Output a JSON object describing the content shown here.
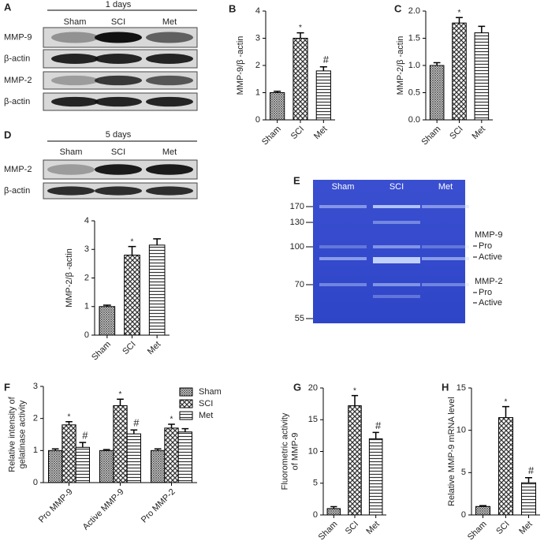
{
  "blots": [
    {
      "panel": "A",
      "title": "1 days",
      "lanes": [
        "Sham",
        "SCI",
        "Met"
      ],
      "rows": [
        "MMP-9",
        "β-actin",
        "MMP-2",
        "β-actin"
      ]
    },
    {
      "panel": "D",
      "title": "5 days",
      "lanes": [
        "Sham",
        "SCI",
        "Met"
      ],
      "rows": [
        "MMP-2",
        "β-actin"
      ]
    }
  ],
  "gel": {
    "panel": "E",
    "lanes": [
      "Sham",
      "SCI",
      "Met"
    ],
    "markers": [
      170,
      130,
      100,
      70,
      55
    ],
    "labels": [
      "MMP-9",
      "Pro",
      "Active",
      "MMP-2",
      "Pro",
      "Active"
    ]
  },
  "chart_data": [
    {
      "type": "bar",
      "panel": "B",
      "ylabel": [
        "MMP-9/β -actin"
      ],
      "categories": [
        "Sham",
        "SCI",
        "Met"
      ],
      "values": [
        1.0,
        3.0,
        1.8
      ],
      "errors": [
        0.05,
        0.2,
        0.15
      ],
      "annotations": [
        null,
        "*",
        "#"
      ],
      "ylim": [
        0,
        4
      ],
      "yticks": [
        0,
        1,
        2,
        3,
        4
      ]
    },
    {
      "type": "bar",
      "panel": "C",
      "ylabel": [
        "MMP-2/β -actin"
      ],
      "categories": [
        "Sham",
        "SCI",
        "Met"
      ],
      "values": [
        1.0,
        1.78,
        1.6
      ],
      "errors": [
        0.05,
        0.1,
        0.12
      ],
      "annotations": [
        null,
        "*",
        null
      ],
      "ylim": [
        0,
        2
      ],
      "yticks": [
        {
          "value": 0,
          "label": "0.0"
        },
        0.5,
        {
          "value": 1,
          "label": "1.0"
        },
        1.5,
        {
          "value": 2,
          "label": "2.0"
        }
      ]
    },
    {
      "type": "bar",
      "ylabel": [
        "MMP-2/β -actin"
      ],
      "categories": [
        "Sham",
        "SCI",
        "Met"
      ],
      "values": [
        1.0,
        2.8,
        3.15
      ],
      "errors": [
        0.05,
        0.3,
        0.22
      ],
      "annotations": [
        null,
        "*",
        null
      ],
      "ylim": [
        0,
        4
      ],
      "yticks": [
        0,
        1,
        2,
        3,
        4
      ]
    },
    {
      "type": "grouped_bar",
      "panel": "F",
      "ylabel": [
        "Relative intensity of",
        "gelatinase activity"
      ],
      "categories": [
        "Pro MMP-9",
        "Active MMP-9",
        "Pro MMP-2"
      ],
      "series": [
        {
          "name": "Sham",
          "values": [
            1.0,
            1.0,
            1.0
          ],
          "errors": [
            0.05,
            0.03,
            0.05
          ],
          "annotations": [
            null,
            null,
            null
          ]
        },
        {
          "name": "SCI",
          "values": [
            1.8,
            2.4,
            1.7
          ],
          "errors": [
            0.1,
            0.2,
            0.12
          ],
          "annotations": [
            "*",
            "*",
            "*"
          ]
        },
        {
          "name": "Met",
          "values": [
            1.1,
            1.52,
            1.58
          ],
          "errors": [
            0.15,
            0.12,
            0.1
          ],
          "annotations": [
            "#",
            "#",
            null
          ]
        }
      ],
      "ylim": [
        0,
        3
      ],
      "yticks": [
        0,
        1,
        2,
        3
      ]
    },
    {
      "type": "bar",
      "panel": "G",
      "ylabel": [
        "Fluorometric activity",
        "of MMP-9"
      ],
      "categories": [
        "Sham",
        "SCI",
        "Met"
      ],
      "values": [
        1.0,
        17.2,
        12.0
      ],
      "errors": [
        0.3,
        1.6,
        1.0
      ],
      "annotations": [
        null,
        "*",
        "#"
      ],
      "ylim": [
        0,
        20
      ],
      "yticks": [
        0,
        5,
        10,
        15,
        20
      ]
    },
    {
      "type": "bar",
      "panel": "H",
      "ylabel": [
        "Relative MMP-9 mRNA level"
      ],
      "categories": [
        "Sham",
        "SCI",
        "Met"
      ],
      "values": [
        1.0,
        11.5,
        3.8
      ],
      "errors": [
        0.1,
        1.3,
        0.6
      ],
      "annotations": [
        null,
        "*",
        "#"
      ],
      "ylim": [
        0,
        15
      ],
      "yticks": [
        0,
        5,
        10,
        15
      ]
    }
  ]
}
